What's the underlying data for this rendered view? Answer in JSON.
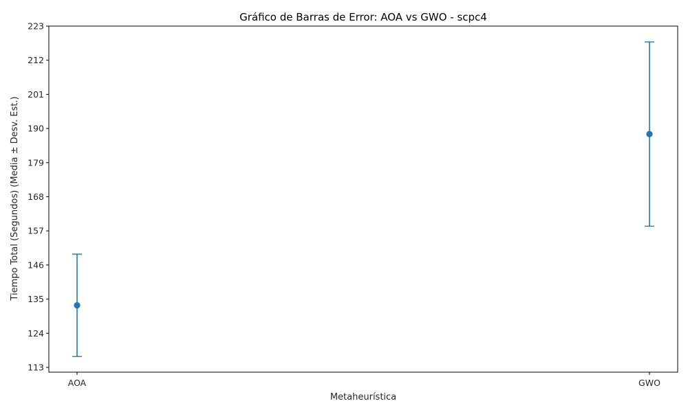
{
  "chart_data": {
    "type": "errorbar",
    "title": "Gráfico de Barras de Error: AOA vs GWO - scpc4",
    "xlabel": "Metaheurística",
    "ylabel": "Tiempo Total (Segundos) (Media ± Desv. Est.)",
    "categories": [
      "AOA",
      "GWO"
    ],
    "series": [
      {
        "values": [
          133.0,
          188.2
        ],
        "errors": [
          16.5,
          29.7
        ]
      }
    ],
    "yticks": [
      "113",
      "124",
      "135",
      "146",
      "157",
      "168",
      "179",
      "190",
      "201",
      "212",
      "223"
    ],
    "ylim": [
      113,
      223
    ],
    "grid": false,
    "color": "#1f77b4"
  }
}
